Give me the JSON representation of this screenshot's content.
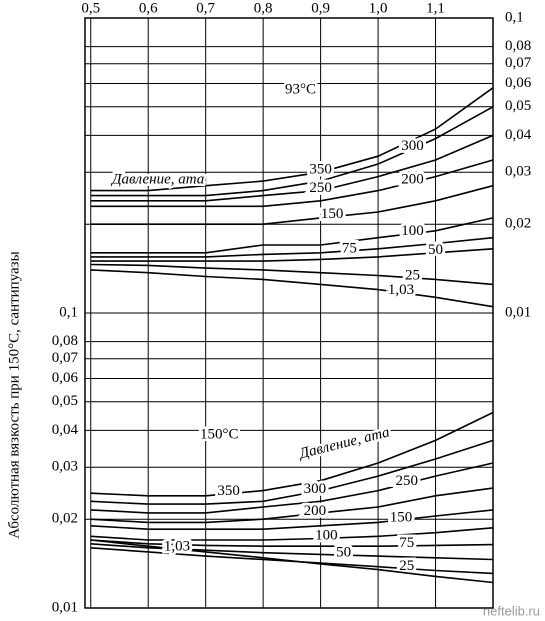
{
  "chart_data": {
    "type": "line",
    "y_label": "Абсолютная вязкость при 150°C, сантипуазы",
    "annotations": [
      "93°C",
      "Давление, ата",
      "150°C",
      "Давление, ата"
    ],
    "watermark": "neftelib.ru",
    "log_scale": true,
    "grid": true,
    "x": [
      0.5,
      0.6,
      0.7,
      0.8,
      0.9,
      1.0,
      1.1,
      1.2
    ],
    "xlim": [
      0.49,
      1.2
    ],
    "xticks": [
      {
        "value": 0.5,
        "label": "0,5"
      },
      {
        "value": 0.6,
        "label": "0,6"
      },
      {
        "value": 0.7,
        "label": "0,7"
      },
      {
        "value": 0.8,
        "label": "0,8"
      },
      {
        "value": 0.9,
        "label": "0,9"
      },
      {
        "value": 1.0,
        "label": "1,0"
      },
      {
        "value": 1.1,
        "label": "1,1"
      }
    ],
    "ylim": [
      0.01,
      1
    ],
    "yticks": [
      {
        "value": 0.01,
        "label": "0,01"
      },
      {
        "value": 0.02,
        "label": "0,02"
      },
      {
        "value": 0.03,
        "label": "0,03"
      },
      {
        "value": 0.04,
        "label": "0,04"
      },
      {
        "value": 0.05,
        "label": "0,05"
      },
      {
        "value": 0.06,
        "label": "0,06"
      },
      {
        "value": 0.07,
        "label": "0,07"
      },
      {
        "value": 0.08,
        "label": "0,08"
      },
      {
        "value": 0.1,
        "label": "0,1"
      }
    ],
    "y2lim": [
      0.001,
      0.1
    ],
    "y2ticks": [
      {
        "value": 0.01,
        "label": "0,01"
      },
      {
        "value": 0.02,
        "label": "0,02"
      },
      {
        "value": 0.03,
        "label": "0,03"
      },
      {
        "value": 0.04,
        "label": "0,04"
      },
      {
        "value": 0.05,
        "label": "0,05"
      },
      {
        "value": 0.06,
        "label": "0,06"
      },
      {
        "value": 0.07,
        "label": "0,07"
      },
      {
        "value": 0.08,
        "label": "0,08"
      },
      {
        "value": 0.1,
        "label": "0,1"
      }
    ],
    "series": [
      {
        "name": "350",
        "axis": "y2",
        "color": "#000000",
        "values": [
          0.026,
          0.026,
          0.027,
          0.028,
          0.03,
          0.034,
          0.042,
          0.058
        ]
      },
      {
        "name": "300",
        "axis": "y2",
        "color": "#000000",
        "values": [
          0.025,
          0.025,
          0.025,
          0.026,
          0.028,
          0.032,
          0.039,
          0.05
        ]
      },
      {
        "name": "250",
        "axis": "y2",
        "color": "#000000",
        "values": [
          0.024,
          0.024,
          0.024,
          0.025,
          0.026,
          0.029,
          0.033,
          0.04
        ]
      },
      {
        "name": "200",
        "axis": "y2",
        "color": "#000000",
        "values": [
          0.023,
          0.023,
          0.023,
          0.023,
          0.024,
          0.026,
          0.029,
          0.033
        ]
      },
      {
        "name": "150",
        "axis": "y2",
        "color": "#000000",
        "values": [
          0.02,
          0.02,
          0.02,
          0.02,
          0.021,
          0.022,
          0.024,
          0.027
        ]
      },
      {
        "name": "100",
        "axis": "y2",
        "color": "#000000",
        "values": [
          0.016,
          0.016,
          0.016,
          0.017,
          0.017,
          0.018,
          0.019,
          0.021
        ]
      },
      {
        "name": "75",
        "axis": "y2",
        "color": "#000000",
        "values": [
          0.0155,
          0.0155,
          0.0155,
          0.0158,
          0.016,
          0.0165,
          0.0172,
          0.018
        ]
      },
      {
        "name": "50",
        "axis": "y2",
        "color": "#000000",
        "values": [
          0.015,
          0.015,
          0.015,
          0.015,
          0.0152,
          0.0155,
          0.016,
          0.0165
        ]
      },
      {
        "name": "25",
        "axis": "y2",
        "color": "#000000",
        "values": [
          0.0146,
          0.0145,
          0.0142,
          0.014,
          0.0137,
          0.0134,
          0.013,
          0.0125
        ]
      },
      {
        "name": "1,03",
        "axis": "y2",
        "color": "#000000",
        "values": [
          0.014,
          0.0137,
          0.0133,
          0.013,
          0.0125,
          0.012,
          0.0113,
          0.0105
        ]
      },
      {
        "name": "350",
        "color": "#000000",
        "values": [
          0.0245,
          0.024,
          0.024,
          0.025,
          0.027,
          0.031,
          0.037,
          0.046
        ]
      },
      {
        "name": "300",
        "color": "#000000",
        "values": [
          0.023,
          0.0225,
          0.0225,
          0.023,
          0.025,
          0.028,
          0.032,
          0.037
        ]
      },
      {
        "name": "250",
        "color": "#000000",
        "values": [
          0.0215,
          0.021,
          0.021,
          0.022,
          0.023,
          0.025,
          0.028,
          0.031
        ]
      },
      {
        "name": "200",
        "color": "#000000",
        "values": [
          0.02,
          0.0195,
          0.0195,
          0.02,
          0.021,
          0.022,
          0.024,
          0.0255
        ]
      },
      {
        "name": "150",
        "color": "#000000",
        "values": [
          0.019,
          0.0185,
          0.0185,
          0.0185,
          0.019,
          0.0195,
          0.0205,
          0.0215
        ]
      },
      {
        "name": "100",
        "color": "#000000",
        "values": [
          0.0175,
          0.017,
          0.017,
          0.017,
          0.0172,
          0.0175,
          0.018,
          0.0187
        ]
      },
      {
        "name": "75",
        "color": "#000000",
        "values": [
          0.017,
          0.0165,
          0.0163,
          0.0162,
          0.0162,
          0.0162,
          0.0163,
          0.0164
        ]
      },
      {
        "name": "50",
        "color": "#000000",
        "values": [
          0.0165,
          0.016,
          0.0157,
          0.0154,
          0.0152,
          0.015,
          0.0148,
          0.0146
        ]
      },
      {
        "name": "25",
        "color": "#000000",
        "values": [
          0.016,
          0.0155,
          0.015,
          0.0146,
          0.0142,
          0.0138,
          0.0134,
          0.0131
        ]
      },
      {
        "name": "1,03",
        "color": "#000000",
        "values": [
          0.017,
          0.0162,
          0.0155,
          0.0148,
          0.0141,
          0.0135,
          0.0128,
          0.0122
        ]
      }
    ]
  }
}
